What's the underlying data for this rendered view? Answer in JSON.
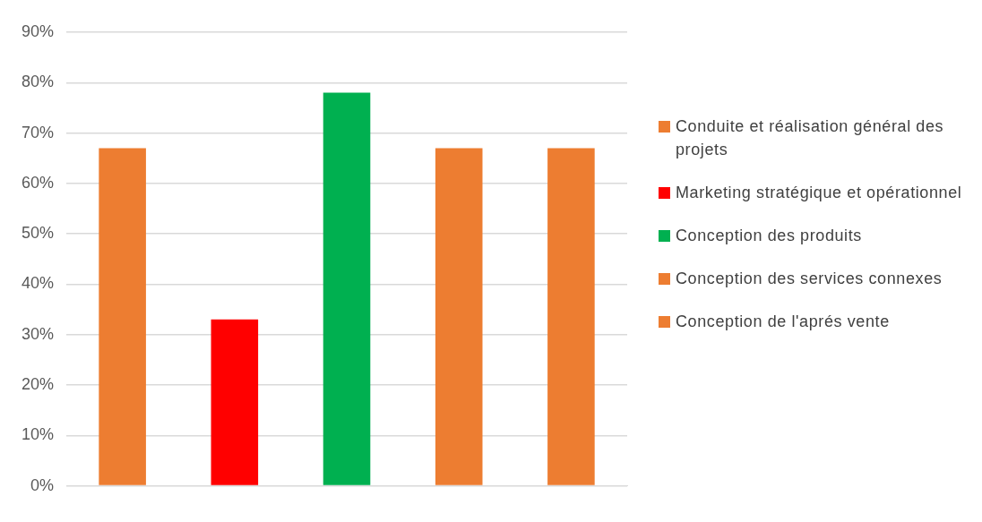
{
  "chart_data": {
    "type": "bar",
    "categories": [
      null,
      null,
      null,
      null,
      null
    ],
    "series": [
      {
        "name": "Conduite et réalisation général des projets",
        "color": "#ed7d31",
        "values": [
          67,
          null,
          null,
          null,
          null
        ]
      },
      {
        "name": "Marketing stratégique et opérationnel",
        "color": "#ff0000",
        "values": [
          null,
          33,
          null,
          null,
          null
        ]
      },
      {
        "name": "Conception des produits",
        "color": "#00b050",
        "values": [
          null,
          null,
          78,
          null,
          null
        ]
      },
      {
        "name": "Conception des services connexes",
        "color": "#ed7d31",
        "values": [
          null,
          null,
          null,
          67,
          null
        ]
      },
      {
        "name": "Conception de l'aprés vente",
        "color": "#ed7d31",
        "values": [
          null,
          null,
          null,
          null,
          67
        ]
      }
    ],
    "ylim": [
      0,
      90
    ],
    "yticks": [
      {
        "value": 0,
        "label": "0%"
      },
      {
        "value": 10,
        "label": "10%"
      },
      {
        "value": 20,
        "label": "20%"
      },
      {
        "value": 30,
        "label": "30%"
      },
      {
        "value": 40,
        "label": "40%"
      },
      {
        "value": 50,
        "label": "50%"
      },
      {
        "value": 60,
        "label": "60%"
      },
      {
        "value": 70,
        "label": "70%"
      },
      {
        "value": 80,
        "label": "80%"
      },
      {
        "value": 90,
        "label": "90%"
      }
    ],
    "grid": "y",
    "legend": "right"
  }
}
